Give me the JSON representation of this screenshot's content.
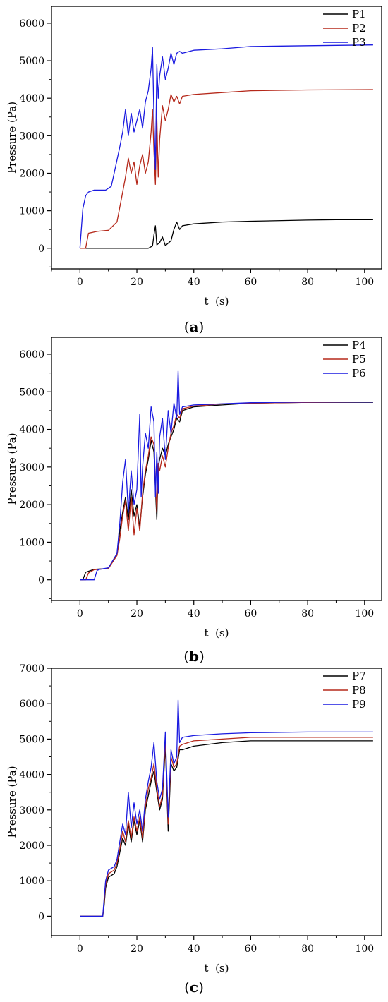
{
  "figure": {
    "panels": [
      {
        "open": "(",
        "letter": "a",
        "close": ")"
      },
      {
        "open": "(",
        "letter": "b",
        "close": ")"
      },
      {
        "open": "(",
        "letter": "c",
        "close": ")"
      }
    ]
  },
  "chart_data": [
    {
      "type": "line",
      "xlabel": "t  (s)",
      "ylabel": "Pressure (Pa)",
      "xlim": [
        -10,
        106
      ],
      "ylim": [
        -550,
        6450
      ],
      "xticks": [
        0,
        20,
        40,
        60,
        80,
        100
      ],
      "yticks": [
        0,
        1000,
        2000,
        3000,
        4000,
        5000,
        6000
      ],
      "grid": false,
      "legend": "top-right",
      "series": [
        {
          "name": "P1",
          "color": "#000000",
          "x": [
            0,
            24,
            25.5,
            26,
            26.5,
            27,
            28,
            29,
            30,
            32,
            33,
            34,
            35,
            36,
            40,
            50,
            60,
            80,
            90,
            103
          ],
          "y": [
            0,
            0,
            60,
            350,
            600,
            90,
            150,
            300,
            70,
            200,
            500,
            700,
            500,
            600,
            650,
            700,
            720,
            750,
            760,
            760
          ]
        },
        {
          "name": "P2",
          "color": "#b5281a",
          "x": [
            0,
            2,
            3,
            6,
            10,
            13,
            15,
            16,
            17,
            18,
            19,
            20,
            21,
            22,
            23,
            24,
            25,
            25.5,
            26,
            26.5,
            27,
            27.5,
            28,
            29,
            30,
            31,
            32,
            33,
            34,
            35,
            36,
            40,
            50,
            60,
            80,
            103
          ],
          "y": [
            0,
            0,
            400,
            450,
            480,
            700,
            1500,
            1900,
            2400,
            2000,
            2300,
            1700,
            2200,
            2500,
            2000,
            2300,
            3100,
            3700,
            2600,
            1700,
            3500,
            1900,
            2900,
            3800,
            3400,
            3700,
            4100,
            3900,
            4050,
            3850,
            4050,
            4100,
            4150,
            4200,
            4220,
            4230
          ]
        },
        {
          "name": "P3",
          "color": "#1a1ae0",
          "x": [
            0,
            1,
            2,
            3,
            5,
            9,
            11,
            12,
            14,
            15,
            16,
            17,
            18,
            19,
            20,
            21,
            22,
            23,
            24,
            25,
            25.5,
            26,
            26.5,
            27,
            27.5,
            28,
            29,
            30,
            31,
            32,
            33,
            34,
            35,
            36,
            40,
            50,
            60,
            80,
            103
          ],
          "y": [
            0,
            1050,
            1400,
            1500,
            1550,
            1550,
            1650,
            2000,
            2700,
            3100,
            3700,
            3000,
            3600,
            3100,
            3400,
            3700,
            3200,
            3900,
            4200,
            4800,
            5350,
            3500,
            2100,
            4900,
            4000,
            4600,
            5100,
            4500,
            4800,
            5200,
            4900,
            5200,
            5250,
            5200,
            5280,
            5320,
            5380,
            5400,
            5420
          ]
        }
      ]
    },
    {
      "type": "line",
      "xlabel": "t  (s)",
      "ylabel": "Pressure (Pa)",
      "xlim": [
        -10,
        106
      ],
      "ylim": [
        -550,
        6450
      ],
      "xticks": [
        0,
        20,
        40,
        60,
        80,
        100
      ],
      "yticks": [
        0,
        1000,
        2000,
        3000,
        4000,
        5000,
        6000
      ],
      "grid": false,
      "legend": "top-right",
      "series": [
        {
          "name": "P4",
          "color": "#000000",
          "x": [
            0,
            1,
            2,
            5,
            10,
            13,
            14,
            15,
            16,
            17,
            18,
            19,
            20,
            21,
            22,
            23,
            24,
            25,
            26,
            26.5,
            27,
            27.5,
            28,
            29,
            30,
            31,
            32,
            33,
            34,
            35,
            36,
            40,
            50,
            60,
            80,
            103
          ],
          "y": [
            0,
            0,
            200,
            280,
            300,
            700,
            1300,
            1800,
            2200,
            1600,
            2400,
            1700,
            2000,
            1400,
            2200,
            2800,
            3200,
            3700,
            3400,
            2400,
            1600,
            3000,
            3200,
            3500,
            3300,
            3600,
            3800,
            4000,
            4300,
            4200,
            4500,
            4600,
            4650,
            4700,
            4720,
            4720
          ]
        },
        {
          "name": "P5",
          "color": "#b5281a",
          "x": [
            0,
            2,
            3,
            5,
            10,
            13,
            14,
            15,
            16,
            17,
            18,
            19,
            20,
            21,
            22,
            23,
            24,
            25,
            26,
            26.5,
            27,
            27.5,
            28,
            29,
            30,
            31,
            32,
            33,
            34,
            35,
            36,
            40,
            50,
            60,
            80,
            103
          ],
          "y": [
            0,
            0,
            180,
            270,
            300,
            650,
            1100,
            1700,
            2100,
            1300,
            2200,
            1200,
            1900,
            1300,
            2300,
            2900,
            3300,
            3800,
            3600,
            2600,
            1800,
            3100,
            2900,
            3300,
            3000,
            3500,
            3900,
            4100,
            4400,
            4300,
            4550,
            4620,
            4680,
            4700,
            4720,
            4730
          ]
        },
        {
          "name": "P6",
          "color": "#1a1ae0",
          "x": [
            0,
            5,
            6,
            7,
            10,
            13,
            14,
            15,
            16,
            17,
            18,
            19,
            20,
            21,
            21.5,
            22,
            23,
            24,
            25,
            26,
            26.5,
            27,
            27.5,
            28,
            29,
            30,
            31,
            32,
            33,
            34,
            34.5,
            35,
            36,
            40,
            50,
            60,
            80,
            103
          ],
          "y": [
            0,
            0,
            250,
            280,
            320,
            700,
            1500,
            2600,
            3200,
            1800,
            2900,
            2000,
            2400,
            4400,
            2200,
            3000,
            3900,
            3500,
            4600,
            4200,
            2200,
            3400,
            2300,
            3800,
            4300,
            3200,
            4500,
            3900,
            4700,
            4300,
            5550,
            4400,
            4600,
            4650,
            4680,
            4710,
            4730,
            4730
          ]
        }
      ]
    },
    {
      "type": "line",
      "xlabel": "t  (s)",
      "ylabel": "Pressure (Pa)",
      "xlim": [
        -10,
        106
      ],
      "ylim": [
        -550,
        7000
      ],
      "xticks": [
        0,
        20,
        40,
        60,
        80,
        100
      ],
      "yticks": [
        0,
        1000,
        2000,
        3000,
        4000,
        5000,
        6000,
        7000
      ],
      "grid": false,
      "legend": "top-right",
      "series": [
        {
          "name": "P7",
          "color": "#000000",
          "x": [
            0,
            8,
            8.5,
            9,
            10,
            12,
            13,
            14,
            15,
            16,
            17,
            18,
            19,
            20,
            21,
            22,
            23,
            24,
            25,
            26,
            27,
            28,
            29,
            30,
            31,
            32,
            33,
            34,
            35,
            36,
            40,
            50,
            60,
            80,
            103
          ],
          "y": [
            0,
            0,
            300,
            800,
            1100,
            1200,
            1400,
            1800,
            2200,
            2000,
            2600,
            2100,
            2700,
            2300,
            2700,
            2100,
            3000,
            3400,
            3800,
            4100,
            3500,
            3000,
            3300,
            4800,
            2400,
            4300,
            4100,
            4200,
            4700,
            4700,
            4800,
            4900,
            4950,
            4950,
            4950
          ]
        },
        {
          "name": "P8",
          "color": "#b5281a",
          "x": [
            0,
            8,
            8.5,
            9,
            10,
            12,
            13,
            14,
            15,
            16,
            17,
            18,
            19,
            20,
            21,
            22,
            23,
            24,
            25,
            26,
            27,
            28,
            29,
            30,
            31,
            32,
            33,
            34,
            35,
            36,
            40,
            50,
            60,
            80,
            103
          ],
          "y": [
            0,
            0,
            400,
            900,
            1200,
            1300,
            1500,
            1900,
            2400,
            2100,
            2700,
            2200,
            2800,
            2400,
            2800,
            2200,
            3100,
            3600,
            3900,
            4300,
            3600,
            3100,
            3400,
            5000,
            2600,
            4500,
            4200,
            4300,
            4800,
            4850,
            4950,
            5000,
            5050,
            5050,
            5050
          ]
        },
        {
          "name": "P9",
          "color": "#1a1ae0",
          "x": [
            0,
            8,
            8.5,
            9,
            10,
            12,
            13,
            14,
            15,
            16,
            17,
            18,
            19,
            20,
            21,
            22,
            23,
            24,
            25,
            26,
            27,
            28,
            29,
            30,
            31,
            32,
            33,
            34,
            34.5,
            35,
            36,
            40,
            50,
            60,
            80,
            103
          ],
          "y": [
            0,
            0,
            500,
            1000,
            1300,
            1400,
            1600,
            2100,
            2600,
            2300,
            3500,
            2500,
            3200,
            2600,
            3000,
            2400,
            3300,
            3800,
            4200,
            4900,
            3800,
            3300,
            3600,
            5200,
            2800,
            4700,
            4300,
            4500,
            6100,
            4900,
            5050,
            5100,
            5150,
            5180,
            5200,
            5200
          ]
        }
      ]
    }
  ]
}
